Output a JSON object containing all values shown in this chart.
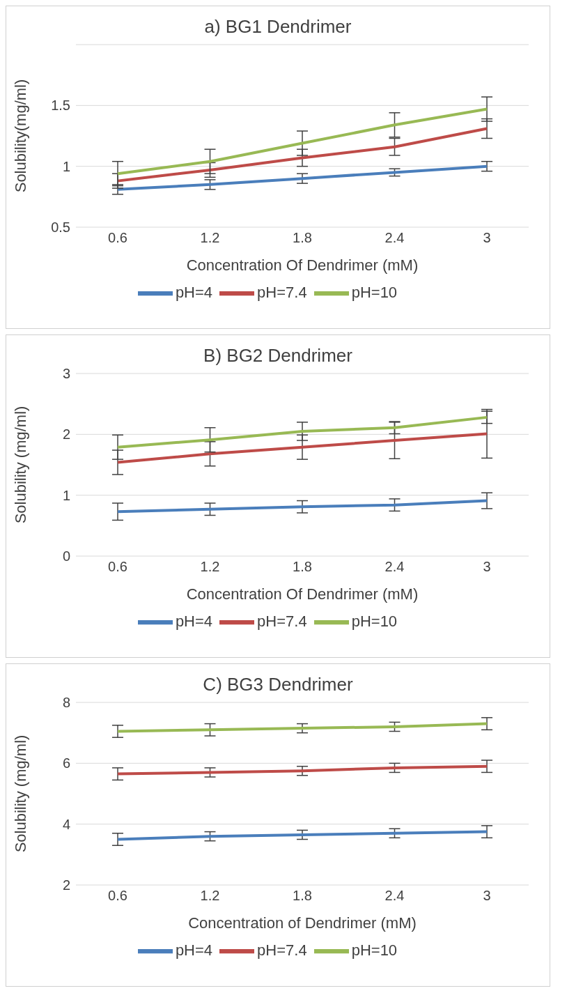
{
  "chart_data": [
    {
      "type": "line",
      "title": "a) BG1 Dendrimer",
      "xlabel": "Concentration Of Dendrimer (mM)",
      "ylabel": "Solubility(mg/ml)",
      "categories": [
        "0.6",
        "1.2",
        "1.8",
        "2.4",
        "3"
      ],
      "ylim": [
        0.5,
        2
      ],
      "yticks": [
        0.5,
        1,
        {
          "value": 1.5,
          "label": "1.5"
        },
        {
          "value": 2,
          "label": null
        }
      ],
      "grid": "y",
      "legend": "bottom",
      "series": [
        {
          "name": "pH=4",
          "color": "#4a7ebb",
          "values": [
            0.81,
            0.85,
            0.9,
            0.95,
            1.0
          ],
          "errors": [
            0.04,
            0.04,
            0.04,
            0.03,
            0.04
          ]
        },
        {
          "name": "pH=7.4",
          "color": "#be4b48",
          "values": [
            0.88,
            0.97,
            1.07,
            1.16,
            1.31
          ],
          "errors": [
            0.06,
            0.06,
            0.07,
            0.07,
            0.08
          ]
        },
        {
          "name": "pH=10",
          "color": "#98b954",
          "values": [
            0.94,
            1.04,
            1.19,
            1.34,
            1.47
          ],
          "errors": [
            0.1,
            0.1,
            0.1,
            0.1,
            0.1
          ]
        }
      ]
    },
    {
      "type": "line",
      "title": "B) BG2 Dendrimer",
      "xlabel": "Concentration Of Dendrimer (mM)",
      "ylabel": "Solubility (mg/ml)",
      "categories": [
        "0.6",
        "1.2",
        "1.8",
        "2.4",
        "3"
      ],
      "ylim": [
        0,
        3
      ],
      "yticks": [
        0,
        1,
        2,
        3
      ],
      "grid": "y",
      "legend": "bottom",
      "series": [
        {
          "name": "pH=4",
          "color": "#4a7ebb",
          "values": [
            0.73,
            0.77,
            0.81,
            0.84,
            0.91
          ],
          "errors": [
            0.14,
            0.1,
            0.1,
            0.1,
            0.13
          ]
        },
        {
          "name": "pH=7.4",
          "color": "#be4b48",
          "values": [
            1.54,
            1.68,
            1.79,
            1.9,
            2.01
          ],
          "errors": [
            0.2,
            0.2,
            0.2,
            0.3,
            0.4
          ]
        },
        {
          "name": "pH=10",
          "color": "#98b954",
          "values": [
            1.79,
            1.91,
            2.05,
            2.11,
            2.28
          ],
          "errors": [
            0.2,
            0.2,
            0.15,
            0.1,
            0.1
          ]
        }
      ]
    },
    {
      "type": "line",
      "title": "C) BG3 Dendrimer",
      "xlabel": "Concentration of Dendrimer (mM)",
      "ylabel": "Solubility (mg/ml)",
      "categories": [
        "0.6",
        "1.2",
        "1.8",
        "2.4",
        "3"
      ],
      "ylim": [
        2,
        8
      ],
      "yticks": [
        2,
        4,
        6,
        8
      ],
      "grid": "y",
      "legend": "bottom",
      "series": [
        {
          "name": "pH=4",
          "color": "#4a7ebb",
          "values": [
            3.5,
            3.6,
            3.65,
            3.7,
            3.75
          ],
          "errors": [
            0.2,
            0.15,
            0.15,
            0.15,
            0.2
          ]
        },
        {
          "name": "pH=7.4",
          "color": "#be4b48",
          "values": [
            5.65,
            5.7,
            5.75,
            5.85,
            5.9
          ],
          "errors": [
            0.2,
            0.15,
            0.15,
            0.15,
            0.2
          ]
        },
        {
          "name": "pH=10",
          "color": "#98b954",
          "values": [
            7.05,
            7.1,
            7.15,
            7.2,
            7.3
          ],
          "errors": [
            0.2,
            0.2,
            0.15,
            0.15,
            0.2
          ]
        }
      ]
    }
  ]
}
